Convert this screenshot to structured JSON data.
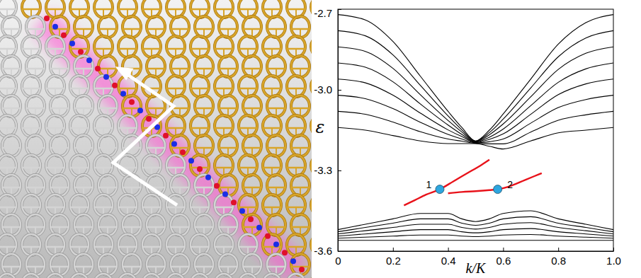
{
  "chart_data": {
    "type": "line",
    "xlabel": "k/K",
    "ylabel": "ε",
    "xlim": [
      0,
      1
    ],
    "ylim": [
      -3.6,
      -2.7
    ],
    "xticks": [
      0,
      0.2,
      0.4,
      0.6,
      0.8,
      {
        "value": 1,
        "label": "1.0"
      }
    ],
    "yticks": [
      -3.6,
      -3.3,
      {
        "value": -3,
        "label": "-3.0"
      },
      -2.7
    ],
    "x": [
      0,
      0.1,
      0.2,
      0.3,
      0.4,
      0.45,
      0.5,
      0.55,
      0.6,
      0.7,
      0.8,
      0.9,
      1
    ],
    "series": [
      {
        "color": "#000000",
        "values": [
          -2.72,
          -2.74,
          -2.82,
          -2.95,
          -3.08,
          -3.14,
          -3.19,
          -3.15,
          -3.09,
          -2.96,
          -2.83,
          -2.75,
          -2.72
        ]
      },
      {
        "color": "#000000",
        "values": [
          -2.78,
          -2.799,
          -2.87,
          -2.984,
          -3.097,
          -3.149,
          -3.191,
          -3.159,
          -3.109,
          -2.993,
          -2.877,
          -2.807,
          -2.78
        ]
      },
      {
        "color": "#000000",
        "values": [
          -2.84,
          -2.857,
          -2.92,
          -3.019,
          -3.114,
          -3.157,
          -3.193,
          -3.167,
          -3.127,
          -3.026,
          -2.924,
          -2.864,
          -2.84
        ]
      },
      {
        "color": "#000000",
        "values": [
          -2.9,
          -2.916,
          -2.97,
          -3.053,
          -3.131,
          -3.166,
          -3.194,
          -3.176,
          -3.146,
          -3.059,
          -2.972,
          -2.922,
          -2.9
        ]
      },
      {
        "color": "#000000",
        "values": [
          -2.96,
          -2.974,
          -3.02,
          -3.087,
          -3.149,
          -3.174,
          -3.196,
          -3.184,
          -3.164,
          -3.091,
          -3.018,
          -2.978,
          -2.96
        ]
      },
      {
        "color": "#000000",
        "values": [
          -3.02,
          -3.033,
          -3.07,
          -3.121,
          -3.166,
          -3.183,
          -3.197,
          -3.193,
          -3.183,
          -3.124,
          -3.066,
          -3.036,
          -3.02
        ]
      },
      {
        "color": "#000000",
        "values": [
          -3.08,
          -3.091,
          -3.12,
          -3.156,
          -3.183,
          -3.191,
          -3.199,
          -3.201,
          -3.201,
          -3.157,
          -3.113,
          -3.093,
          -3.08
        ]
      },
      {
        "color": "#000000",
        "values": [
          -3.14,
          -3.15,
          -3.17,
          -3.19,
          -3.2,
          -3.2,
          -3.2,
          -3.21,
          -3.22,
          -3.19,
          -3.16,
          -3.15,
          -3.14
        ]
      },
      {
        "color": "#000000",
        "values": [
          -3.52,
          -3.5,
          -3.48,
          -3.46,
          -3.46,
          -3.48,
          -3.49,
          -3.48,
          -3.46,
          -3.45,
          -3.48,
          -3.5,
          -3.52
        ]
      },
      {
        "color": "#000000",
        "values": [
          -3.528,
          -3.512,
          -3.496,
          -3.48,
          -3.48,
          -3.496,
          -3.504,
          -3.496,
          -3.48,
          -3.472,
          -3.496,
          -3.512,
          -3.528
        ]
      },
      {
        "color": "#000000",
        "values": [
          -3.536,
          -3.524,
          -3.512,
          -3.5,
          -3.5,
          -3.512,
          -3.518,
          -3.512,
          -3.5,
          -3.494,
          -3.512,
          -3.524,
          -3.536
        ]
      },
      {
        "color": "#000000",
        "values": [
          -3.544,
          -3.536,
          -3.528,
          -3.52,
          -3.52,
          -3.528,
          -3.532,
          -3.528,
          -3.52,
          -3.516,
          -3.528,
          -3.536,
          -3.544
        ]
      },
      {
        "color": "#000000",
        "values": [
          -3.552,
          -3.548,
          -3.544,
          -3.54,
          -3.54,
          -3.544,
          -3.546,
          -3.544,
          -3.54,
          -3.538,
          -3.544,
          -3.548,
          -3.552
        ]
      },
      {
        "color": "#000000",
        "values": [
          -3.56,
          -3.56,
          -3.56,
          -3.56,
          -3.56,
          -3.56,
          -3.56,
          -3.56,
          -3.56,
          -3.56,
          -3.56,
          -3.56,
          -3.56
        ]
      },
      {
        "color": "#e8121a",
        "x": [
          0.24,
          0.28,
          0.32,
          0.37,
          0.42,
          0.47,
          0.52,
          0.55
        ],
        "values": [
          -3.43,
          -3.41,
          -3.39,
          -3.37,
          -3.34,
          -3.31,
          -3.28,
          -3.26
        ]
      },
      {
        "color": "#e8121a",
        "x": [
          0.4,
          0.45,
          0.5,
          0.55,
          0.58,
          0.62,
          0.68,
          0.74
        ],
        "values": [
          -3.385,
          -3.38,
          -3.377,
          -3.373,
          -3.37,
          -3.36,
          -3.335,
          -3.31
        ]
      },
      {
        "type": "scatter",
        "marker": "circle",
        "color": "#2ea6df",
        "x": [
          0.37,
          0.58
        ],
        "values": [
          -3.37,
          -3.37
        ]
      }
    ],
    "annotations": [
      {
        "text": "1",
        "x": 0.33,
        "y": -3.365
      },
      {
        "text": "2",
        "x": 0.625,
        "y": -3.365
      }
    ]
  }
}
